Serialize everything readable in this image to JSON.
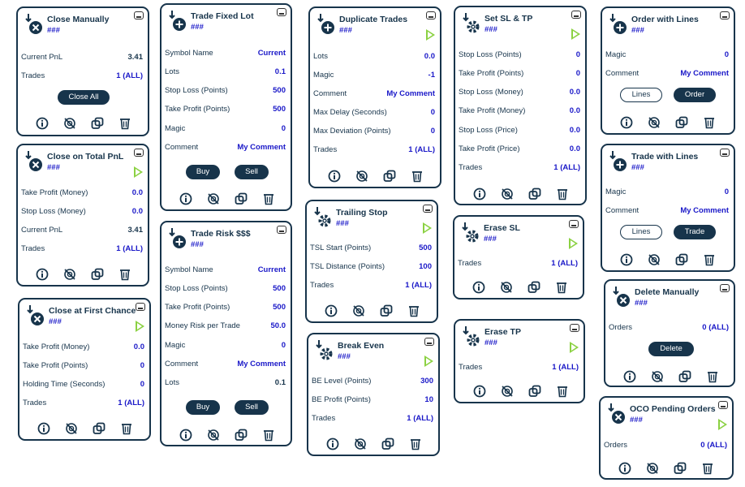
{
  "colors": {
    "navy": "#17344b",
    "value_blue": "#1a18c8",
    "play_green": "#8bd142"
  },
  "icons": {
    "tools": [
      "info-icon",
      "no-magic-icon",
      "duplicate-icon",
      "trash-icon"
    ],
    "minimize": "minimize-icon",
    "play": "play-icon"
  },
  "panels": {
    "close_manually": {
      "title": "Close Manually",
      "magic": "###",
      "rows": [
        {
          "label": "Current PnL",
          "value": "3.41"
        },
        {
          "label": "Trades",
          "value": "1 (ALL)"
        }
      ],
      "button": "Close All"
    },
    "close_total_pnl": {
      "title": "Close on Total PnL",
      "magic": "###",
      "rows": [
        {
          "label": "Take Profit (Money)",
          "value": "0.0"
        },
        {
          "label": "Stop Loss (Money)",
          "value": "0.0"
        },
        {
          "label": "Current PnL",
          "value": "3.41"
        },
        {
          "label": "Trades",
          "value": "1 (ALL)"
        }
      ]
    },
    "close_first_chance": {
      "title": "Close at First Chance",
      "magic": "###",
      "rows": [
        {
          "label": "Take Profit (Money)",
          "value": "0.0"
        },
        {
          "label": "Take Profit (Points)",
          "value": "0"
        },
        {
          "label": "Holding Time (Seconds)",
          "value": "0"
        },
        {
          "label": "Trades",
          "value": "1 (ALL)"
        }
      ]
    },
    "trade_fixed_lot": {
      "title": "Trade Fixed Lot",
      "magic": "###",
      "rows": [
        {
          "label": "Symbol Name",
          "value": "Current"
        },
        {
          "label": "Lots",
          "value": "0.1"
        },
        {
          "label": "Stop Loss (Points)",
          "value": "500"
        },
        {
          "label": "Take Profit (Points)",
          "value": "500"
        },
        {
          "label": "Magic",
          "value": "0"
        },
        {
          "label": "Comment",
          "value": "My Comment"
        }
      ],
      "buy": "Buy",
      "sell": "Sell"
    },
    "trade_risk": {
      "title": "Trade Risk $$$",
      "magic": "###",
      "rows": [
        {
          "label": "Symbol Name",
          "value": "Current"
        },
        {
          "label": "Stop Loss (Points)",
          "value": "500"
        },
        {
          "label": "Take Profit (Points)",
          "value": "500"
        },
        {
          "label": "Money Risk per Trade",
          "value": "50.0"
        },
        {
          "label": "Magic",
          "value": "0"
        },
        {
          "label": "Comment",
          "value": "My Comment"
        },
        {
          "label": "Lots",
          "value": "0.1"
        }
      ],
      "buy": "Buy",
      "sell": "Sell"
    },
    "duplicate_trades": {
      "title": "Duplicate Trades",
      "magic": "###",
      "rows": [
        {
          "label": "Lots",
          "value": "0.0"
        },
        {
          "label": "Magic",
          "value": "-1"
        },
        {
          "label": "Comment",
          "value": "My Comment"
        },
        {
          "label": "Max Delay (Seconds)",
          "value": "0"
        },
        {
          "label": "Max Deviation (Points)",
          "value": "0"
        },
        {
          "label": "Trades",
          "value": "1 (ALL)"
        }
      ]
    },
    "trailing_stop": {
      "title": "Trailing Stop",
      "magic": "###",
      "rows": [
        {
          "label": "TSL Start (Points)",
          "value": "500"
        },
        {
          "label": "TSL Distance (Points)",
          "value": "100"
        },
        {
          "label": "Trades",
          "value": "1 (ALL)"
        }
      ]
    },
    "break_even": {
      "title": "Break Even",
      "magic": "###",
      "rows": [
        {
          "label": "BE Level (Points)",
          "value": "300"
        },
        {
          "label": "BE Profit (Points)",
          "value": "10"
        },
        {
          "label": "Trades",
          "value": "1 (ALL)"
        }
      ]
    },
    "set_sl_tp": {
      "title": "Set SL & TP",
      "magic": "###",
      "rows": [
        {
          "label": "Stop Loss (Points)",
          "value": "0"
        },
        {
          "label": "Take Profit (Points)",
          "value": "0"
        },
        {
          "label": "Stop Loss (Money)",
          "value": "0.0"
        },
        {
          "label": "Take Profit (Money)",
          "value": "0.0"
        },
        {
          "label": "Stop Loss (Price)",
          "value": "0.0"
        },
        {
          "label": "Take Profit (Price)",
          "value": "0.0"
        },
        {
          "label": "Trades",
          "value": "1 (ALL)"
        }
      ]
    },
    "erase_sl": {
      "title": "Erase SL",
      "magic": "###",
      "rows": [
        {
          "label": "Trades",
          "value": "1 (ALL)"
        }
      ]
    },
    "erase_tp": {
      "title": "Erase TP",
      "magic": "###",
      "rows": [
        {
          "label": "Trades",
          "value": "1 (ALL)"
        }
      ]
    },
    "order_with_lines": {
      "title": "Order with Lines",
      "magic": "###",
      "rows": [
        {
          "label": "Magic",
          "value": "0"
        },
        {
          "label": "Comment",
          "value": "My Comment"
        }
      ],
      "lines": "Lines",
      "action": "Order"
    },
    "trade_with_lines": {
      "title": "Trade with Lines",
      "magic": "###",
      "rows": [
        {
          "label": "Magic",
          "value": "0"
        },
        {
          "label": "Comment",
          "value": "My Comment"
        }
      ],
      "lines": "Lines",
      "action": "Trade"
    },
    "delete_manually": {
      "title": "Delete Manually",
      "magic": "###",
      "rows": [
        {
          "label": "Orders",
          "value": "0 (ALL)"
        }
      ],
      "button": "Delete"
    },
    "oco_pending": {
      "title": "OCO Pending Orders",
      "magic": "###",
      "rows": [
        {
          "label": "Orders",
          "value": "0 (ALL)"
        }
      ]
    }
  }
}
